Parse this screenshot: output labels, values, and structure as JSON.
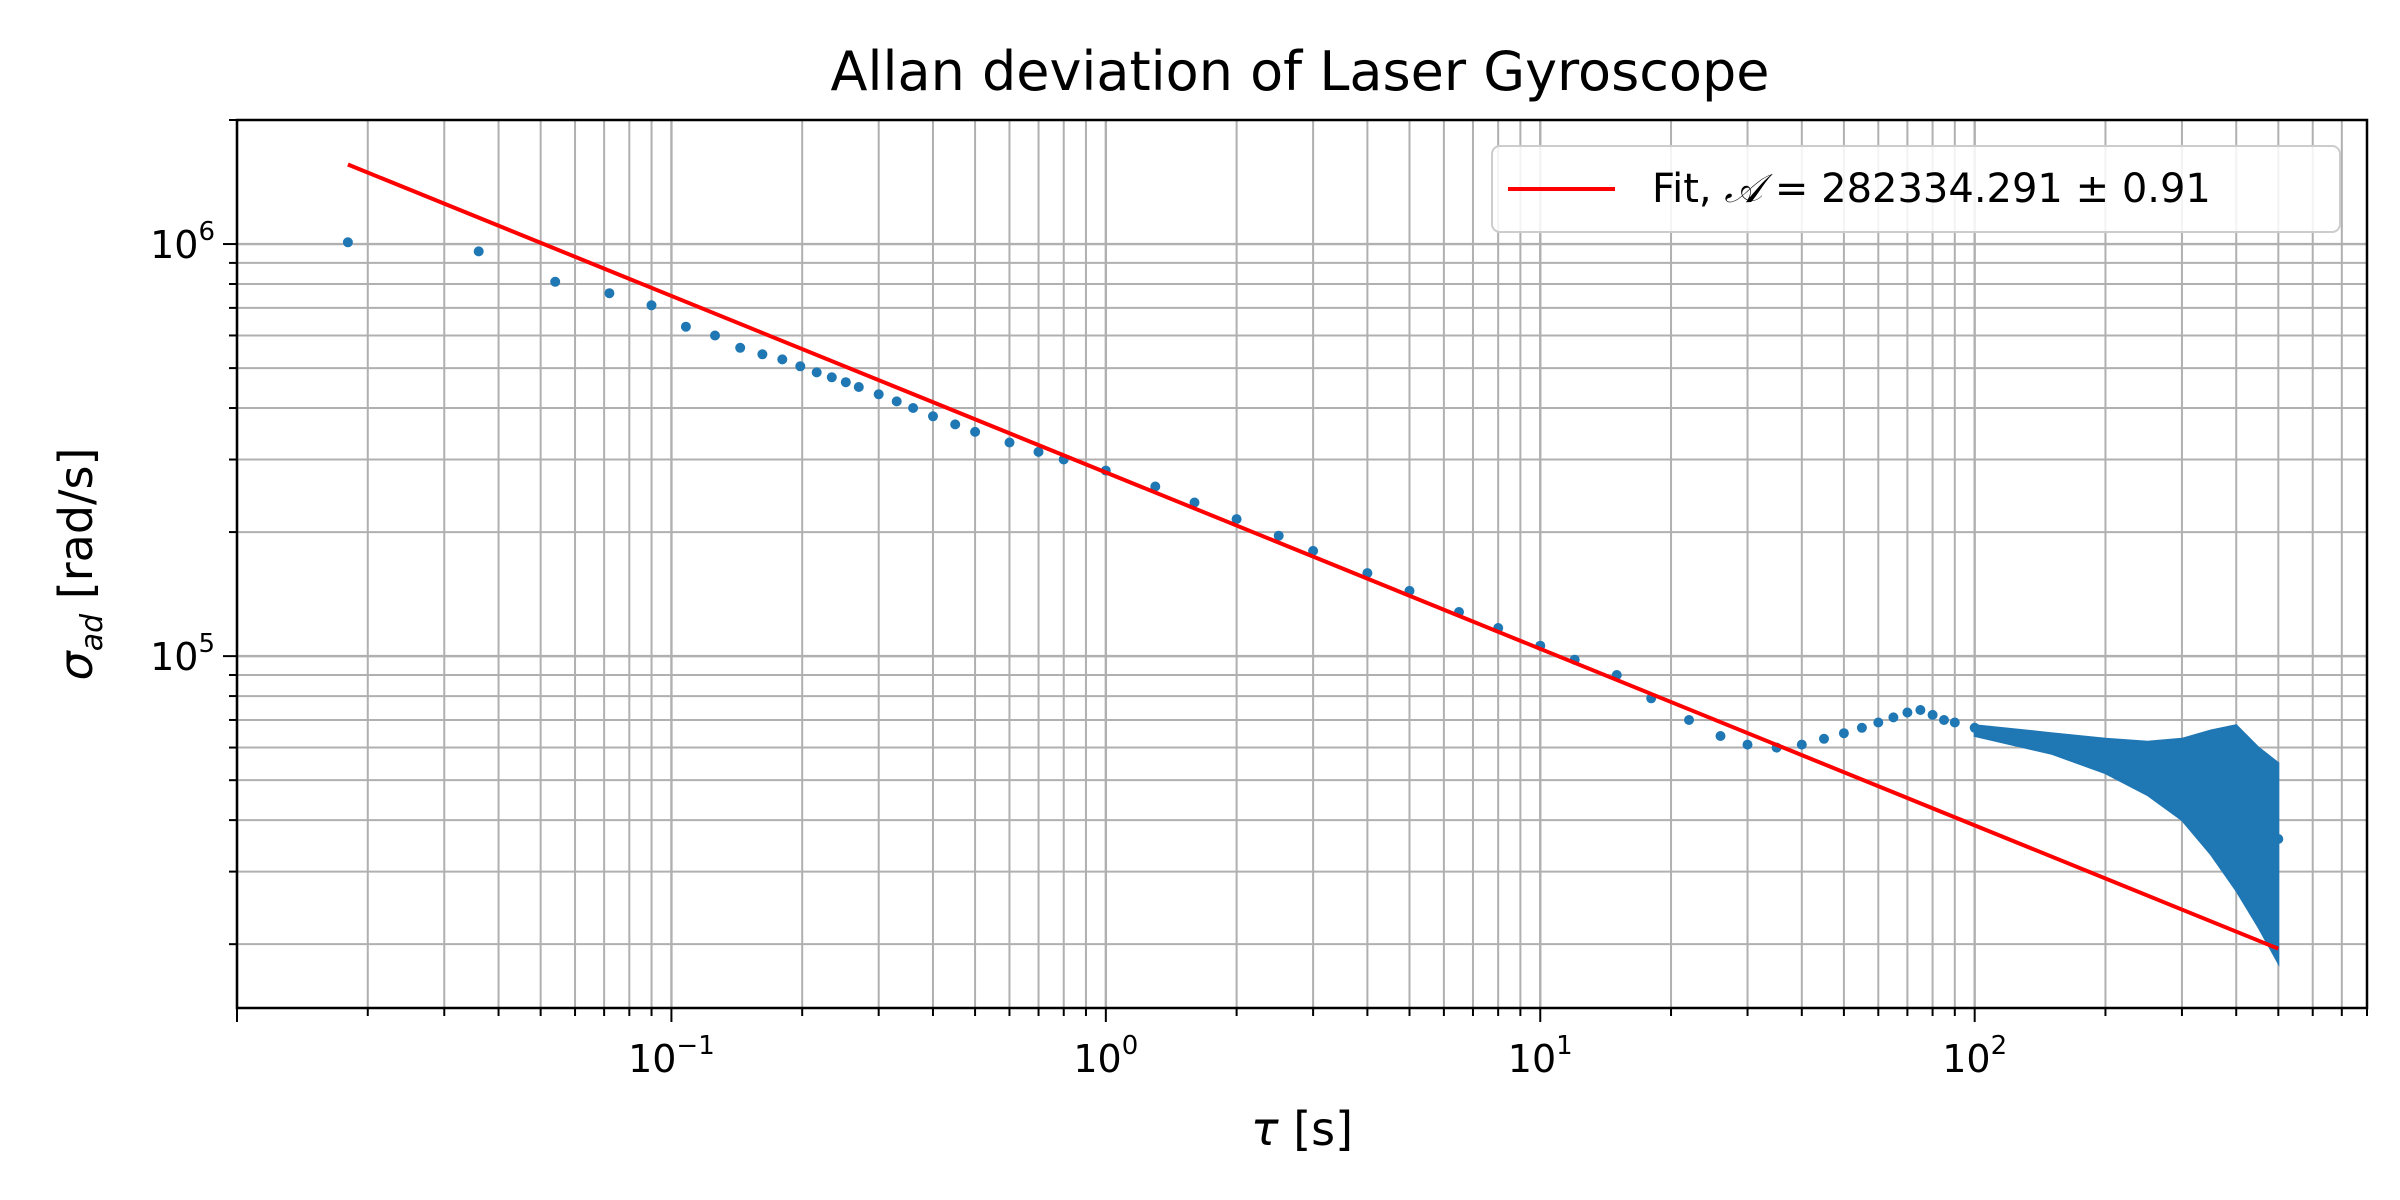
{
  "chart_data": {
    "type": "scatter",
    "title": "Allan deviation of Laser Gyroscope",
    "xlabel_symbol": "τ",
    "xlabel_unit": " [s]",
    "ylabel_symbol": "σ",
    "ylabel_sub": "ad",
    "ylabel_unit": " [rad/s]",
    "xscale": "log",
    "yscale": "log",
    "xlim": [
      0.01,
      800
    ],
    "ylim": [
      14000,
      2000000
    ],
    "xticks": [
      {
        "base": "10",
        "exp": "−1",
        "value": 0.1
      },
      {
        "base": "10",
        "exp": "0",
        "value": 1
      },
      {
        "base": "10",
        "exp": "1",
        "value": 10
      },
      {
        "base": "10",
        "exp": "2",
        "value": 100
      }
    ],
    "yticks": [
      {
        "base": "10",
        "exp": "5",
        "value": 100000
      },
      {
        "base": "10",
        "exp": "6",
        "value": 1000000
      }
    ],
    "grid": "major and minor",
    "legend": {
      "placement": "upper right",
      "label_prefix": "Fit, ",
      "label_symbol": "𝒜",
      "label_value": " = 282334.291 ± 0.91"
    },
    "colors": {
      "data": "#1f77b4",
      "fit": "#ff0000"
    },
    "series": [
      {
        "kind": "points",
        "x": [
          0.018,
          0.036,
          0.054,
          0.072,
          0.09,
          0.108,
          0.126,
          0.144,
          0.162,
          0.18,
          0.198,
          0.216,
          0.234,
          0.252,
          0.27,
          0.3,
          0.33,
          0.36,
          0.4,
          0.45,
          0.5,
          0.6,
          0.7,
          0.8,
          1.0,
          1.3,
          1.6,
          2.0,
          2.5,
          3.0,
          4.0,
          5.0,
          6.5,
          8.0,
          10,
          12,
          15,
          18,
          22,
          26,
          30,
          35,
          40,
          45,
          50,
          55,
          60,
          65,
          70,
          75,
          80,
          85,
          90,
          100,
          110,
          120,
          140,
          160,
          180,
          200,
          230,
          260,
          300,
          340,
          380,
          420,
          460,
          500
        ],
        "y": [
          1010000,
          960000,
          810000,
          760000,
          710000,
          630000,
          600000,
          560000,
          540000,
          525000,
          505000,
          488000,
          475000,
          462000,
          450000,
          432000,
          415000,
          400000,
          382000,
          365000,
          350000,
          330000,
          313000,
          300000,
          282000,
          258000,
          236000,
          215000,
          196000,
          180000,
          159000,
          144000,
          128000,
          117000,
          106000,
          98000,
          90000,
          79000,
          70000,
          64000,
          61000,
          60000,
          61000,
          63000,
          65000,
          67000,
          69000,
          71000,
          73000,
          74000,
          72000,
          70000,
          69000,
          67000,
          65000,
          64000,
          62000,
          60000,
          59000,
          57000,
          55000,
          53000,
          51000,
          48000,
          46000,
          44000,
          40000,
          36000
        ]
      },
      {
        "kind": "band",
        "x": [
          100,
          150,
          200,
          250,
          300,
          350,
          400,
          450,
          500
        ],
        "upper": [
          68000,
          65000,
          63000,
          62000,
          63000,
          66000,
          68000,
          60000,
          55000
        ],
        "lower": [
          64000,
          58000,
          52000,
          46000,
          40000,
          33000,
          27000,
          22000,
          18000
        ]
      },
      {
        "kind": "line",
        "name": "Fit",
        "x": [
          0.018,
          500
        ],
        "y": [
          1560000,
          19500
        ]
      }
    ]
  }
}
